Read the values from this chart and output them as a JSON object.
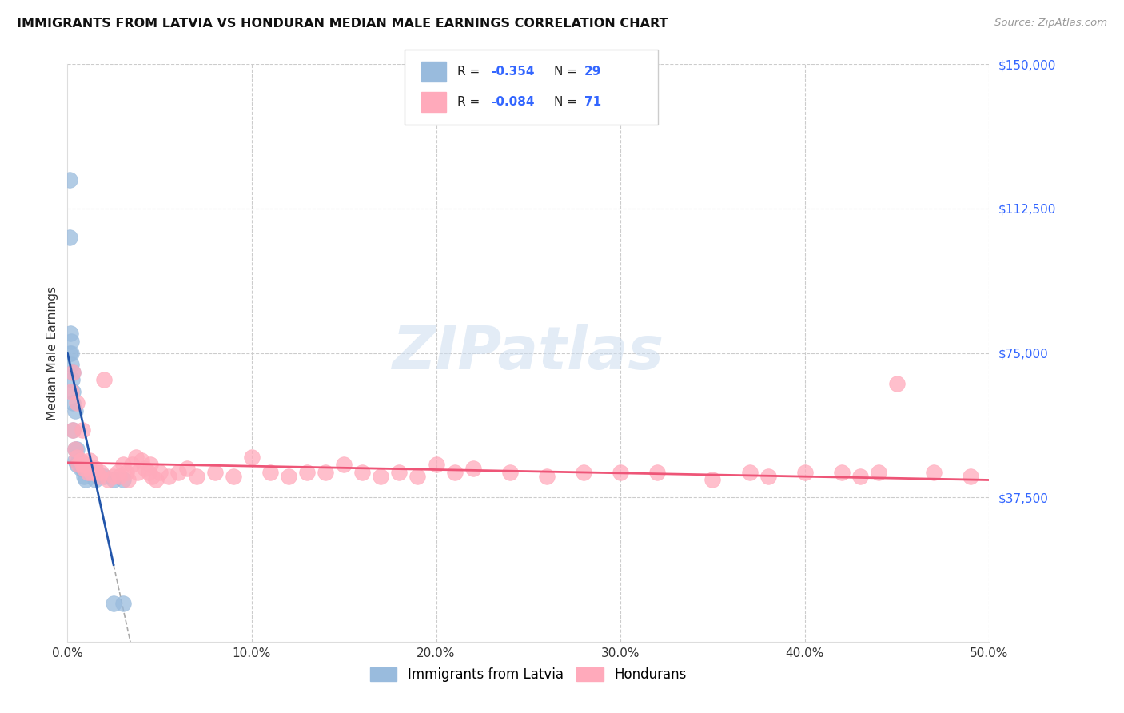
{
  "title": "IMMIGRANTS FROM LATVIA VS HONDURAN MEDIAN MALE EARNINGS CORRELATION CHART",
  "source": "Source: ZipAtlas.com",
  "ylabel": "Median Male Earnings",
  "xlim": [
    0.0,
    0.5
  ],
  "ylim": [
    0,
    150000
  ],
  "yticks": [
    0,
    37500,
    75000,
    112500,
    150000
  ],
  "xticks": [
    0.0,
    0.1,
    0.2,
    0.3,
    0.4,
    0.5
  ],
  "xtick_labels": [
    "0.0%",
    "10.0%",
    "20.0%",
    "30.0%",
    "40.0%",
    "50.0%"
  ],
  "background_color": "#ffffff",
  "blue_color": "#99bbdd",
  "pink_color": "#ffaabb",
  "line_blue": "#2255aa",
  "line_pink": "#ee5577",
  "axis_label_color": "#3366ff",
  "latvia_x": [
    0.001,
    0.001,
    0.001,
    0.0015,
    0.002,
    0.002,
    0.002,
    0.0025,
    0.003,
    0.003,
    0.003,
    0.003,
    0.004,
    0.004,
    0.004,
    0.005,
    0.005,
    0.006,
    0.007,
    0.007,
    0.008,
    0.009,
    0.01,
    0.015,
    0.02,
    0.025,
    0.025,
    0.03,
    0.03
  ],
  "latvia_y": [
    120000,
    105000,
    75000,
    80000,
    78000,
    75000,
    72000,
    68000,
    70000,
    65000,
    62000,
    55000,
    60000,
    50000,
    47000,
    50000,
    46000,
    47000,
    46000,
    45000,
    45000,
    43000,
    42000,
    42000,
    43000,
    42000,
    10000,
    42000,
    10000
  ],
  "honduran_x": [
    0.002,
    0.003,
    0.003,
    0.004,
    0.005,
    0.005,
    0.006,
    0.007,
    0.008,
    0.008,
    0.009,
    0.01,
    0.011,
    0.012,
    0.013,
    0.015,
    0.016,
    0.017,
    0.018,
    0.02,
    0.022,
    0.025,
    0.027,
    0.028,
    0.03,
    0.032,
    0.033,
    0.035,
    0.037,
    0.038,
    0.04,
    0.042,
    0.044,
    0.045,
    0.046,
    0.048,
    0.05,
    0.055,
    0.06,
    0.065,
    0.07,
    0.08,
    0.09,
    0.1,
    0.11,
    0.12,
    0.13,
    0.14,
    0.15,
    0.16,
    0.17,
    0.18,
    0.19,
    0.2,
    0.21,
    0.22,
    0.24,
    0.26,
    0.28,
    0.3,
    0.32,
    0.35,
    0.37,
    0.38,
    0.4,
    0.42,
    0.43,
    0.44,
    0.45,
    0.47,
    0.49
  ],
  "honduran_y": [
    65000,
    70000,
    55000,
    50000,
    48000,
    62000,
    46000,
    47000,
    46000,
    55000,
    45000,
    46000,
    44000,
    47000,
    44000,
    45000,
    44000,
    43000,
    44000,
    68000,
    42000,
    43000,
    44000,
    43000,
    46000,
    44000,
    42000,
    46000,
    48000,
    44000,
    47000,
    45000,
    44000,
    46000,
    43000,
    42000,
    44000,
    43000,
    44000,
    45000,
    43000,
    44000,
    43000,
    48000,
    44000,
    43000,
    44000,
    44000,
    46000,
    44000,
    43000,
    44000,
    43000,
    46000,
    44000,
    45000,
    44000,
    43000,
    44000,
    44000,
    44000,
    42000,
    44000,
    43000,
    44000,
    44000,
    43000,
    44000,
    67000,
    44000,
    43000
  ]
}
